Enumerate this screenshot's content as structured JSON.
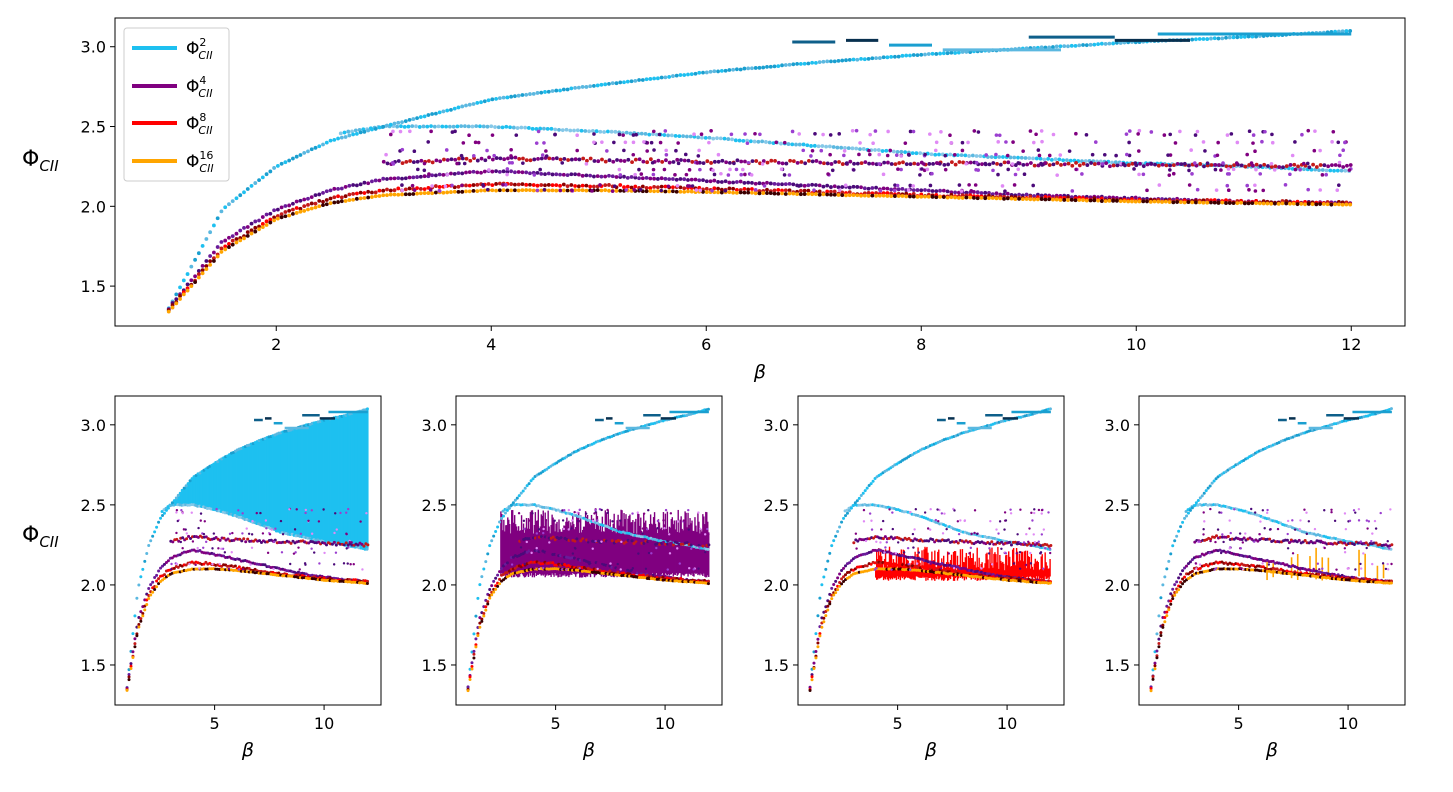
{
  "figure": {
    "y_label": "Φ",
    "y_label_sub": "CII",
    "x_label": "β"
  },
  "legend": {
    "items": [
      {
        "sym": "Φ",
        "sup": "2",
        "sub": "CII",
        "color": "#1ec0f0"
      },
      {
        "sym": "Φ",
        "sup": "4",
        "sub": "CII",
        "color": "#800080"
      },
      {
        "sym": "Φ",
        "sup": "8",
        "sub": "CII",
        "color": "#ff0000"
      },
      {
        "sym": "Φ",
        "sup": "16",
        "sub": "CII",
        "color": "#ffa500"
      }
    ]
  },
  "colors": {
    "phi2": "#1ec0f0",
    "phi2_alt": [
      "#1a9fd0",
      "#5bb8e0",
      "#0e5f8a",
      "#08304f",
      "#85c8e8"
    ],
    "phi4": "#800080",
    "phi4_alt": [
      "#4b0a7a",
      "#9b3fd0",
      "#e08af5",
      "#6a1b9a"
    ],
    "phi8": "#ff0000",
    "phi8_alt": [
      "#c41a1a",
      "#8b0000",
      "#3a0000"
    ],
    "phi16": "#ffa500",
    "axes": "#000000"
  },
  "chart_data": [
    {
      "panel": "main",
      "type": "scatter",
      "highlight": null,
      "xlim": [
        0.5,
        12.5
      ],
      "ylim": [
        1.25,
        3.18
      ],
      "x_ticks": [
        2,
        4,
        6,
        8,
        10,
        12
      ],
      "y_ticks": [
        1.5,
        2.0,
        2.5,
        3.0
      ],
      "xlabel": "β",
      "ylabel": "Φ_CII",
      "legend_position": "top-left",
      "series": [
        {
          "name": "Φ^2_CII",
          "x": [
            1.0,
            1.5,
            2.0,
            2.5,
            3.0,
            4.0,
            5.0,
            6.0,
            7.0,
            8.0,
            9.0,
            10.0,
            11.0,
            12.0
          ],
          "y": [
            1.36,
            1.98,
            2.25,
            2.41,
            2.5,
            2.67,
            2.76,
            2.84,
            2.9,
            2.95,
            2.99,
            3.03,
            3.06,
            3.1
          ]
        },
        {
          "name": "Φ^2_CII branch",
          "x": [
            2.6,
            3.0,
            4.0,
            5.0,
            6.0,
            7.0,
            8.0,
            9.0,
            10.0,
            11.0,
            12.0
          ],
          "y": [
            2.46,
            2.5,
            2.5,
            2.47,
            2.43,
            2.38,
            2.33,
            2.3,
            2.27,
            2.25,
            2.22
          ]
        },
        {
          "name": "Φ^4_CII",
          "x": [
            1.0,
            1.5,
            2.0,
            2.5,
            3.0,
            4.0,
            5.0,
            6.0,
            7.0,
            8.0,
            9.0,
            10.0,
            11.0,
            12.0
          ],
          "y": [
            1.36,
            1.78,
            1.98,
            2.1,
            2.17,
            2.22,
            2.19,
            2.16,
            2.13,
            2.1,
            2.07,
            2.05,
            2.03,
            2.02
          ]
        },
        {
          "name": "Φ^4_CII upper",
          "x": [
            3.0,
            4.0,
            5.0,
            6.0,
            8.0,
            10.0,
            12.0
          ],
          "y": [
            2.27,
            2.3,
            2.29,
            2.28,
            2.27,
            2.26,
            2.25
          ]
        },
        {
          "name": "Φ^8_CII",
          "x": [
            1.0,
            1.5,
            2.0,
            2.5,
            3.0,
            4.0,
            5.0,
            6.0,
            8.0,
            10.0,
            12.0
          ],
          "y": [
            1.35,
            1.74,
            1.94,
            2.05,
            2.1,
            2.14,
            2.13,
            2.11,
            2.07,
            2.04,
            2.02
          ]
        },
        {
          "name": "Φ^16_CII",
          "x": [
            1.0,
            1.5,
            2.0,
            2.5,
            3.0,
            4.0,
            5.0,
            6.0,
            8.0,
            10.0,
            12.0
          ],
          "y": [
            1.34,
            1.72,
            1.92,
            2.02,
            2.07,
            2.1,
            2.1,
            2.09,
            2.06,
            2.03,
            2.01
          ]
        }
      ]
    },
    {
      "panel": "small-1",
      "type": "scatter",
      "highlight": "Φ^2_CII",
      "xlim": [
        0.45,
        12.6
      ],
      "ylim": [
        1.25,
        3.18
      ],
      "x_ticks": [
        5,
        10
      ],
      "y_ticks": [
        1.5,
        2.0,
        2.5,
        3.0
      ],
      "xlabel": "β",
      "ylabel": "Φ_CII",
      "fill_band": {
        "x_from": 3.0,
        "x_to": 12.0,
        "lower": "Φ^2_CII branch",
        "upper": "Φ^2_CII"
      }
    },
    {
      "panel": "small-2",
      "type": "scatter",
      "highlight": "Φ^4_CII",
      "xlim": [
        0.45,
        12.6
      ],
      "ylim": [
        1.25,
        3.18
      ],
      "x_ticks": [
        5,
        10
      ],
      "y_ticks": [
        1.5,
        2.0,
        2.5,
        3.0
      ],
      "xlabel": "β",
      "ylabel": "",
      "fill_band": {
        "x_from": 2.5,
        "x_to": 12.0,
        "lower": 2.06,
        "upper": 2.47
      }
    },
    {
      "panel": "small-3",
      "type": "scatter",
      "highlight": "Φ^8_CII",
      "xlim": [
        0.45,
        12.6
      ],
      "ylim": [
        1.25,
        3.18
      ],
      "x_ticks": [
        5,
        10
      ],
      "y_ticks": [
        1.5,
        2.0,
        2.5,
        3.0
      ],
      "xlabel": "β",
      "ylabel": "",
      "fill_band": {
        "x_from": 4.0,
        "x_to": 12.0,
        "lower": 2.04,
        "upper": 2.24
      }
    },
    {
      "panel": "small-4",
      "type": "scatter",
      "highlight": "Φ^16_CII",
      "xlim": [
        0.45,
        12.6
      ],
      "ylim": [
        1.25,
        3.18
      ],
      "x_ticks": [
        5,
        10
      ],
      "y_ticks": [
        1.5,
        2.0,
        2.5,
        3.0
      ],
      "xlabel": "β",
      "ylabel": "",
      "fill_band": {
        "x_from": 6.3,
        "x_to": 12.0,
        "lower": 2.04,
        "upper": 2.24,
        "sparse": true
      }
    }
  ]
}
